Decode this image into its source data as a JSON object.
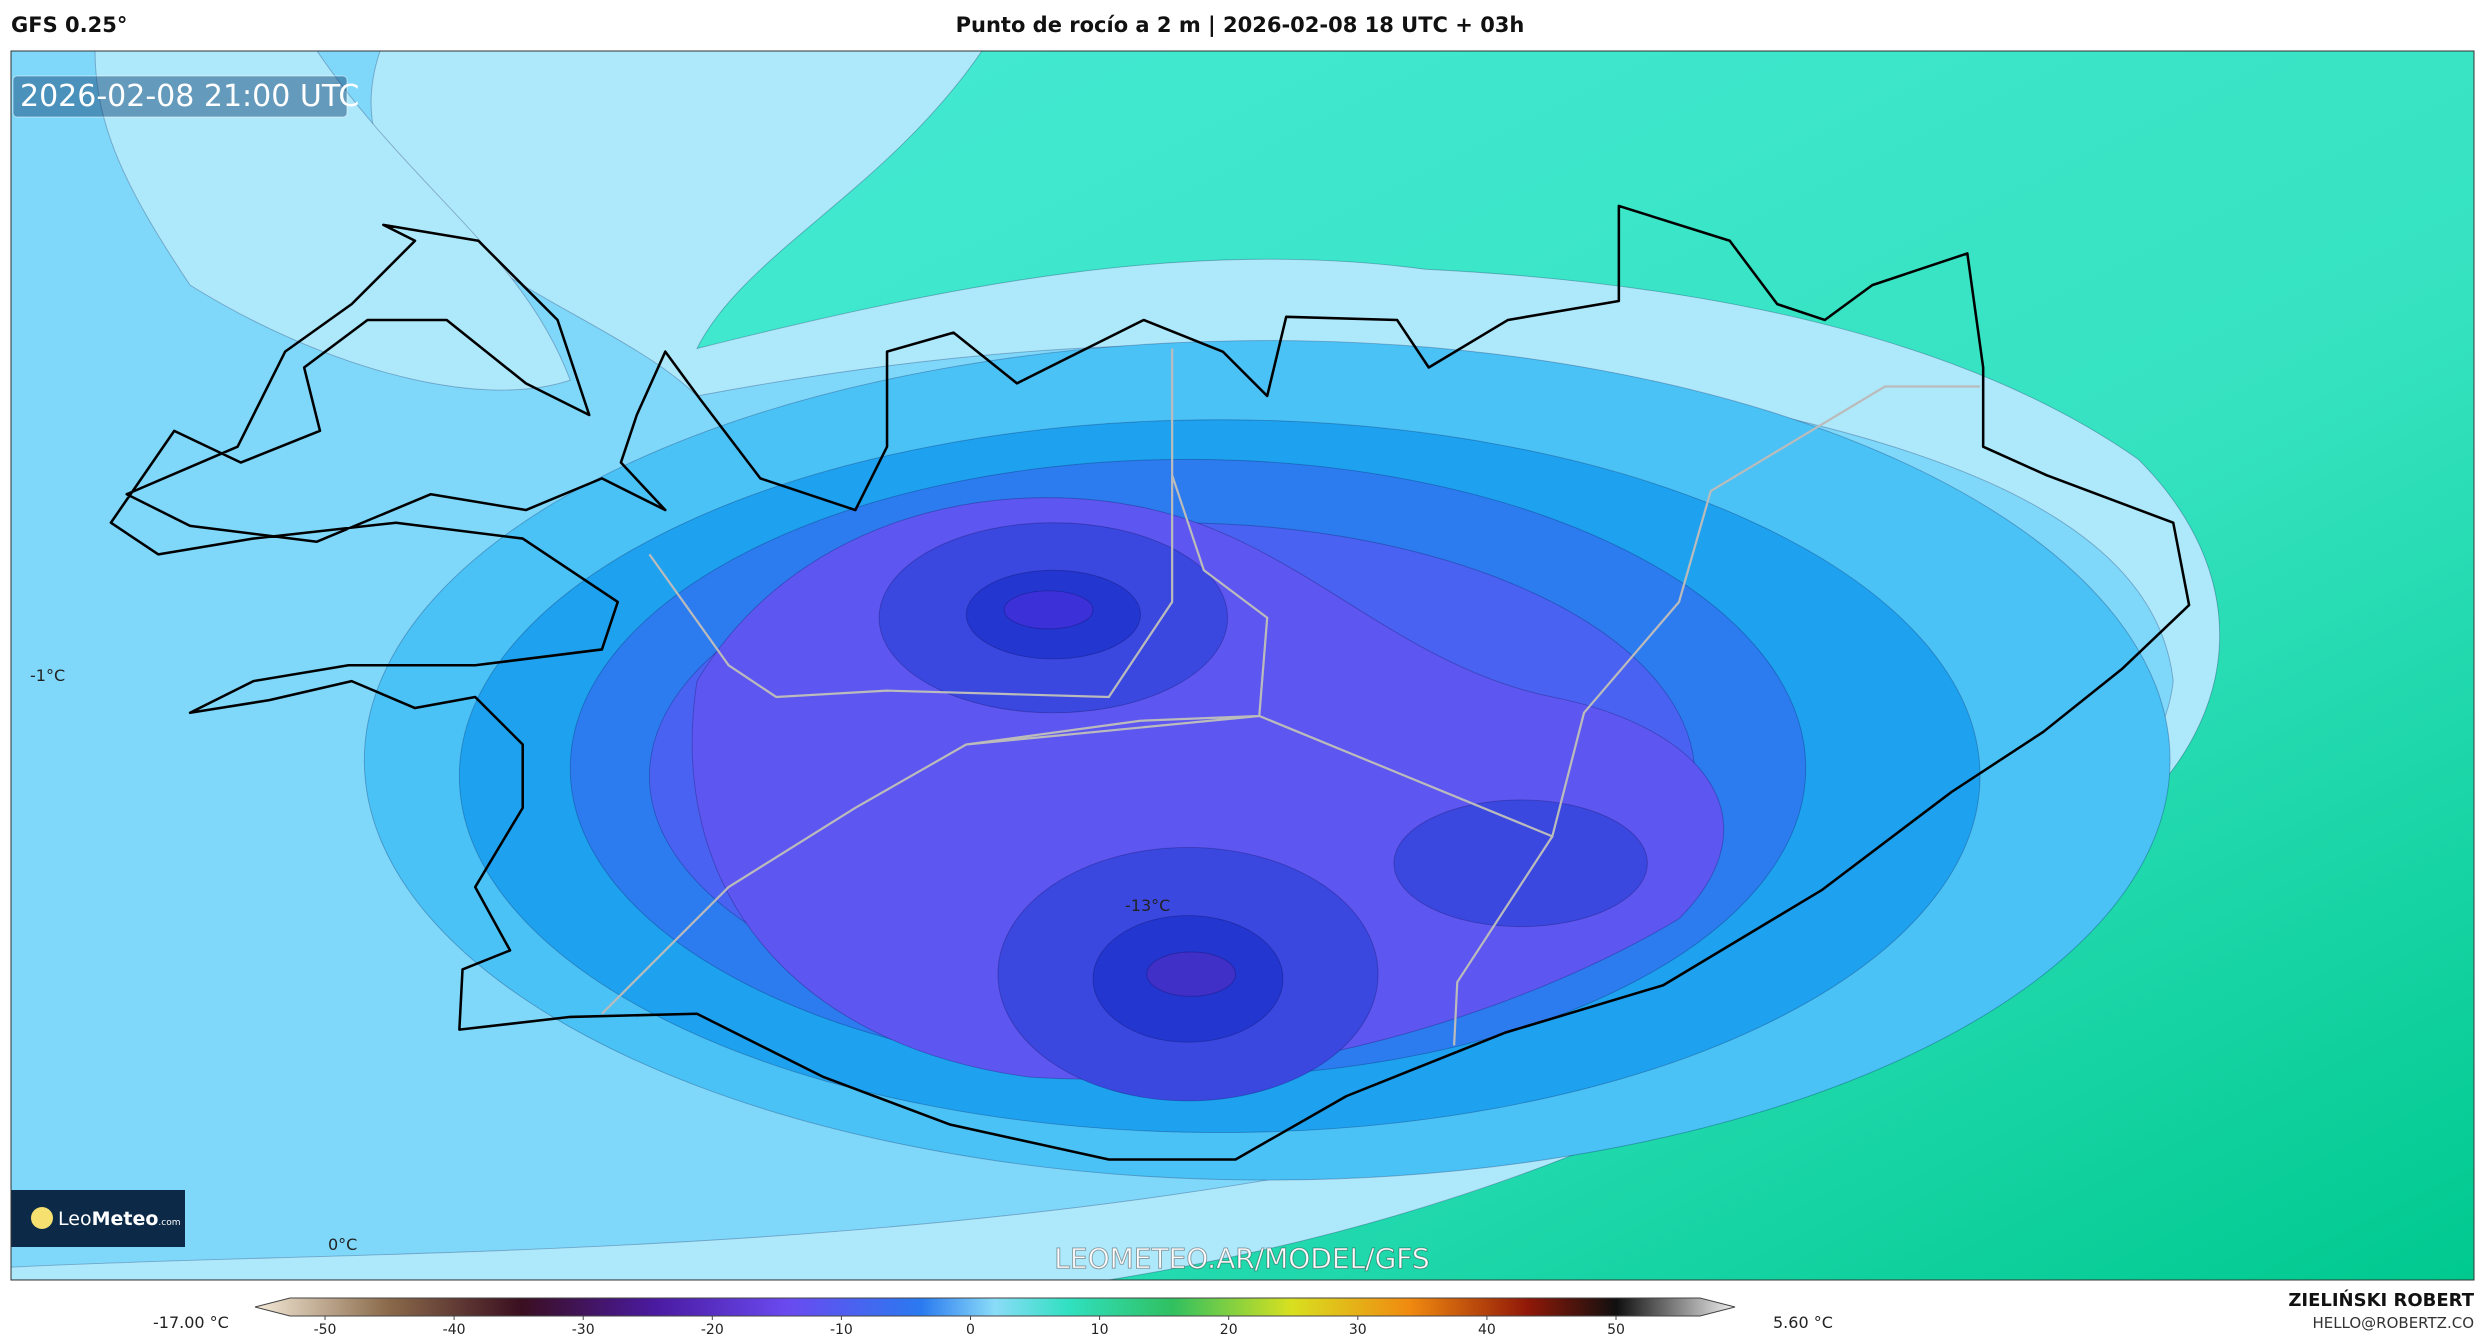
{
  "header": {
    "model": "GFS 0.25°",
    "title": "Punto de rocío a 2 m | 2026-02-08 18 UTC + 03h"
  },
  "map": {
    "valid_time": "2026-02-08 21:00 UTC",
    "labels": [
      "-1°C",
      "-13°C",
      "0°C"
    ],
    "watermark": "LEOMETEO.AR/MODEL/GFS",
    "logo": {
      "brand": "Leo",
      "brand_bold": "Meteo",
      "suffix": ".com"
    }
  },
  "colorbar": {
    "min_label": "-17.00 °C",
    "max_label": "5.60 °C",
    "ticks": [
      -50,
      -40,
      -30,
      -20,
      -10,
      0,
      10,
      20,
      30,
      40,
      50
    ]
  },
  "footer": {
    "author": "ZIELIŃSKI ROBERT",
    "email": "HELLO@ROBERTZ.CO"
  }
}
